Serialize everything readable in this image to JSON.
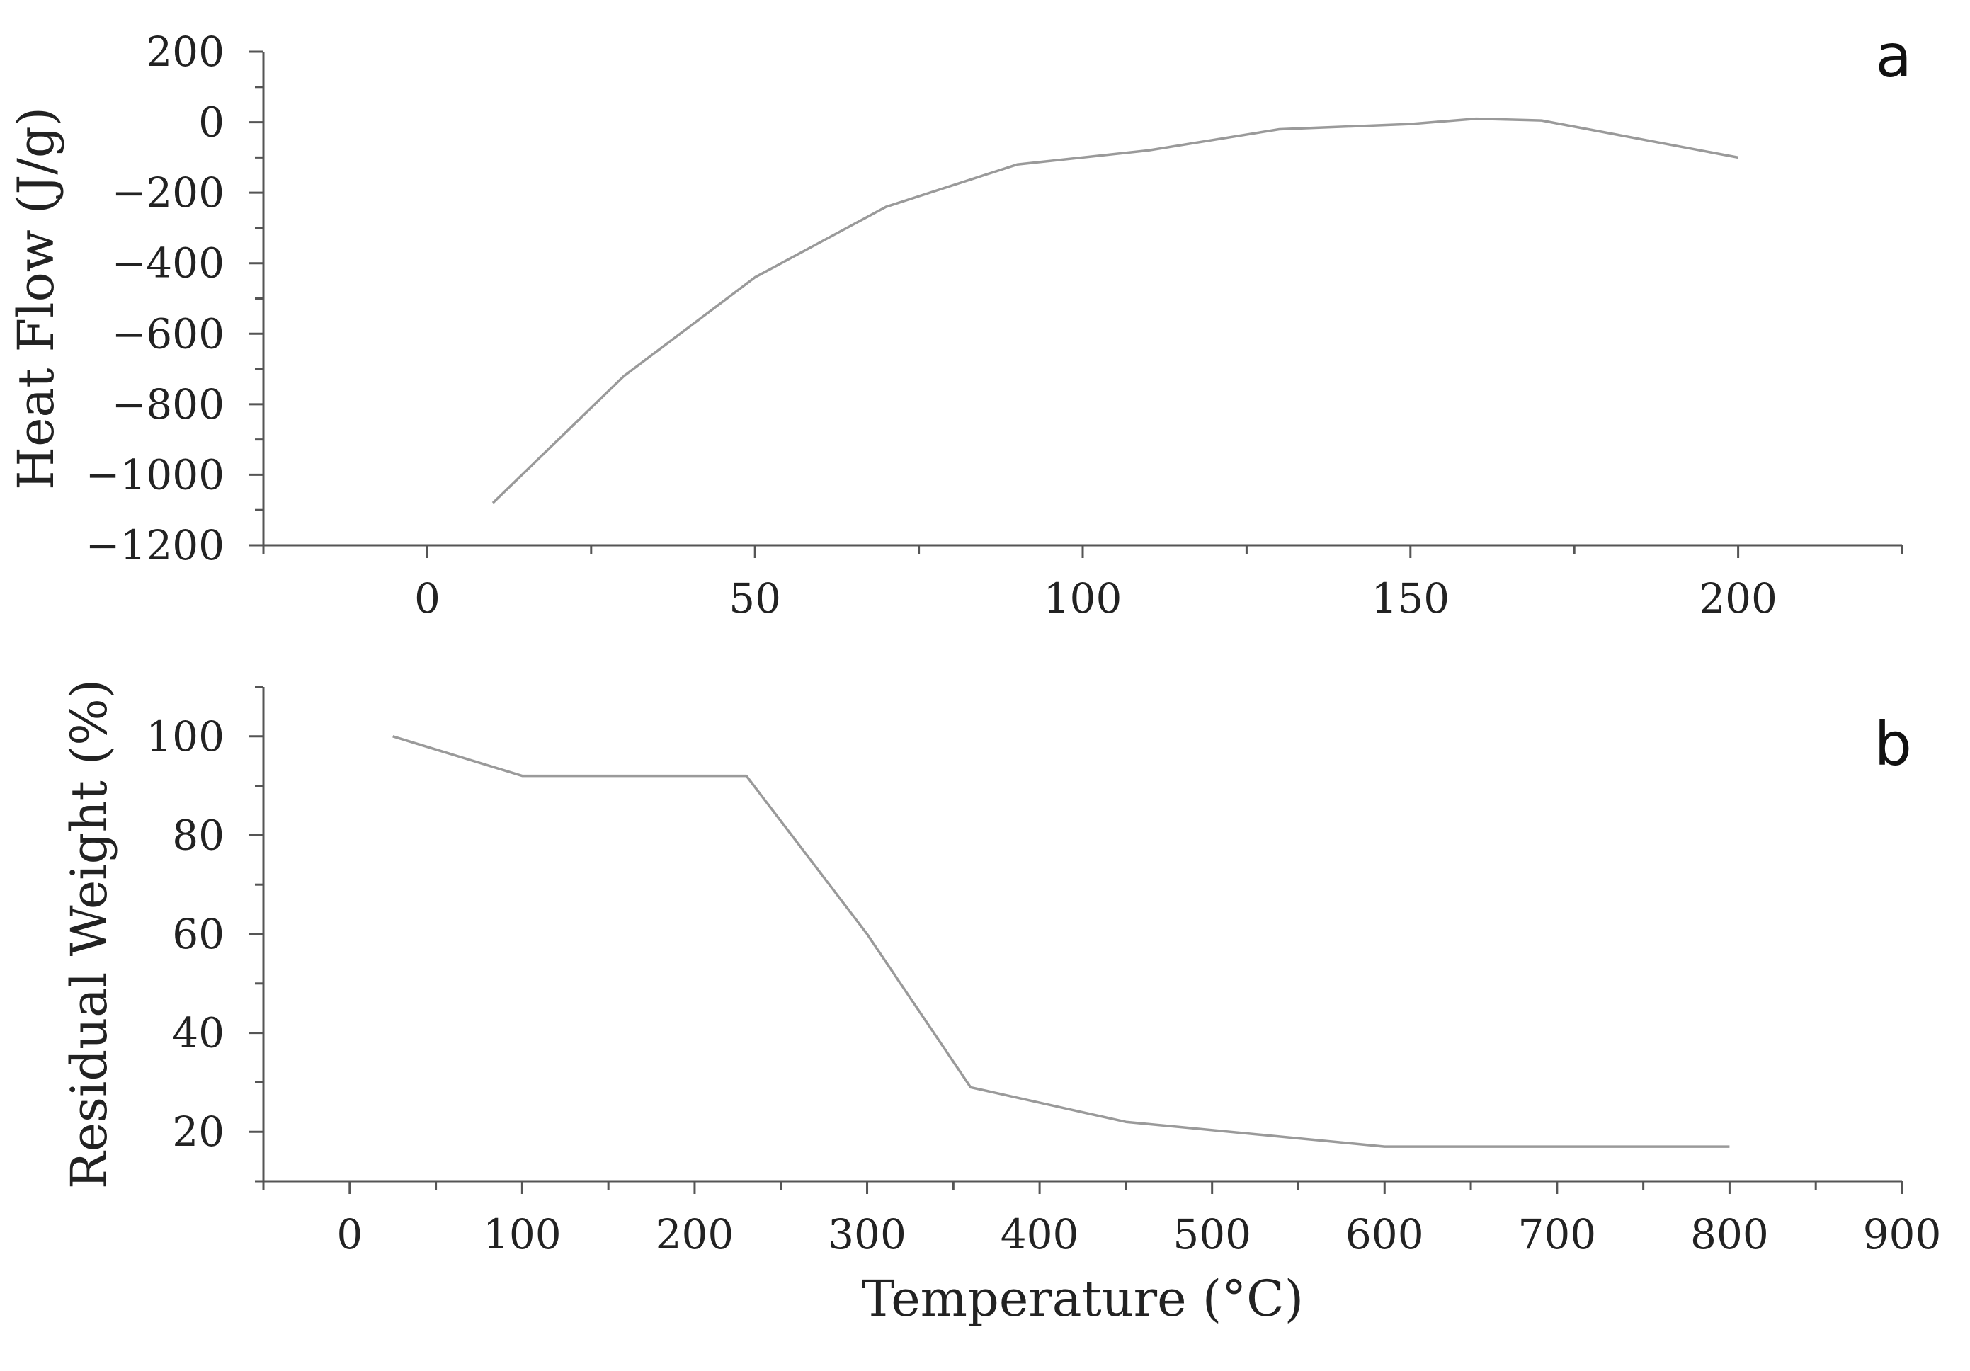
{
  "chart_data": [
    {
      "panel": "a",
      "type": "line",
      "xlabel": "",
      "ylabel": "Heat Flow (J/g)",
      "xlim": [
        -25,
        225
      ],
      "ylim": [
        -1200,
        200
      ],
      "xticks": [
        0,
        50,
        100,
        150,
        200
      ],
      "yticks": [
        200,
        0,
        -200,
        -400,
        -600,
        -800,
        -1000,
        -1200
      ],
      "xtick_labels": [
        "0",
        "50",
        "100",
        "150",
        "200"
      ],
      "ytick_labels": [
        "200",
        "0",
        "−200",
        "−400",
        "−600",
        "−800",
        "−1000",
        "−1200"
      ],
      "grid": false,
      "series": [
        {
          "x": [
            10,
            30,
            50,
            70,
            90,
            110,
            130,
            150,
            160,
            170,
            200
          ],
          "y": [
            -1080,
            -720,
            -440,
            -240,
            -120,
            -80,
            -20,
            -5,
            10,
            5,
            -100
          ]
        }
      ]
    },
    {
      "panel": "b",
      "type": "line",
      "xlabel": "Temperature (°C)",
      "ylabel": "Residual Weight (%)",
      "xlim": [
        -50,
        900
      ],
      "ylim": [
        10,
        110
      ],
      "xticks": [
        0,
        100,
        200,
        300,
        400,
        500,
        600,
        700,
        800,
        900
      ],
      "yticks": [
        20,
        40,
        60,
        80,
        100
      ],
      "xtick_labels": [
        "0",
        "100",
        "200",
        "300",
        "400",
        "500",
        "600",
        "700",
        "800",
        "900"
      ],
      "ytick_labels": [
        "20",
        "40",
        "60",
        "80",
        "100"
      ],
      "grid": false,
      "series": [
        {
          "x": [
            25,
            100,
            230,
            300,
            360,
            450,
            600,
            800
          ],
          "y": [
            100,
            92,
            92,
            60,
            29,
            22,
            17,
            17
          ]
        }
      ]
    }
  ]
}
